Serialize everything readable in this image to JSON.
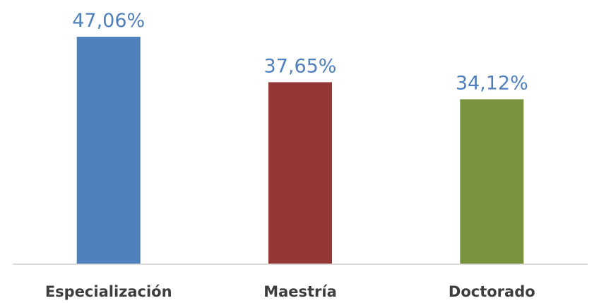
{
  "chart_data": {
    "type": "bar",
    "title": "",
    "xlabel": "",
    "ylabel": "",
    "categories": [
      "Especialización",
      "Maestría",
      "Doctorado"
    ],
    "values": [
      47.06,
      37.65,
      34.12
    ],
    "value_labels": [
      "47,06%",
      "37,65%",
      "34,12%"
    ],
    "colors": [
      "#4f81bd",
      "#953735",
      "#77933c"
    ],
    "ylim": [
      0,
      50
    ],
    "grid": false,
    "legend": "none"
  }
}
